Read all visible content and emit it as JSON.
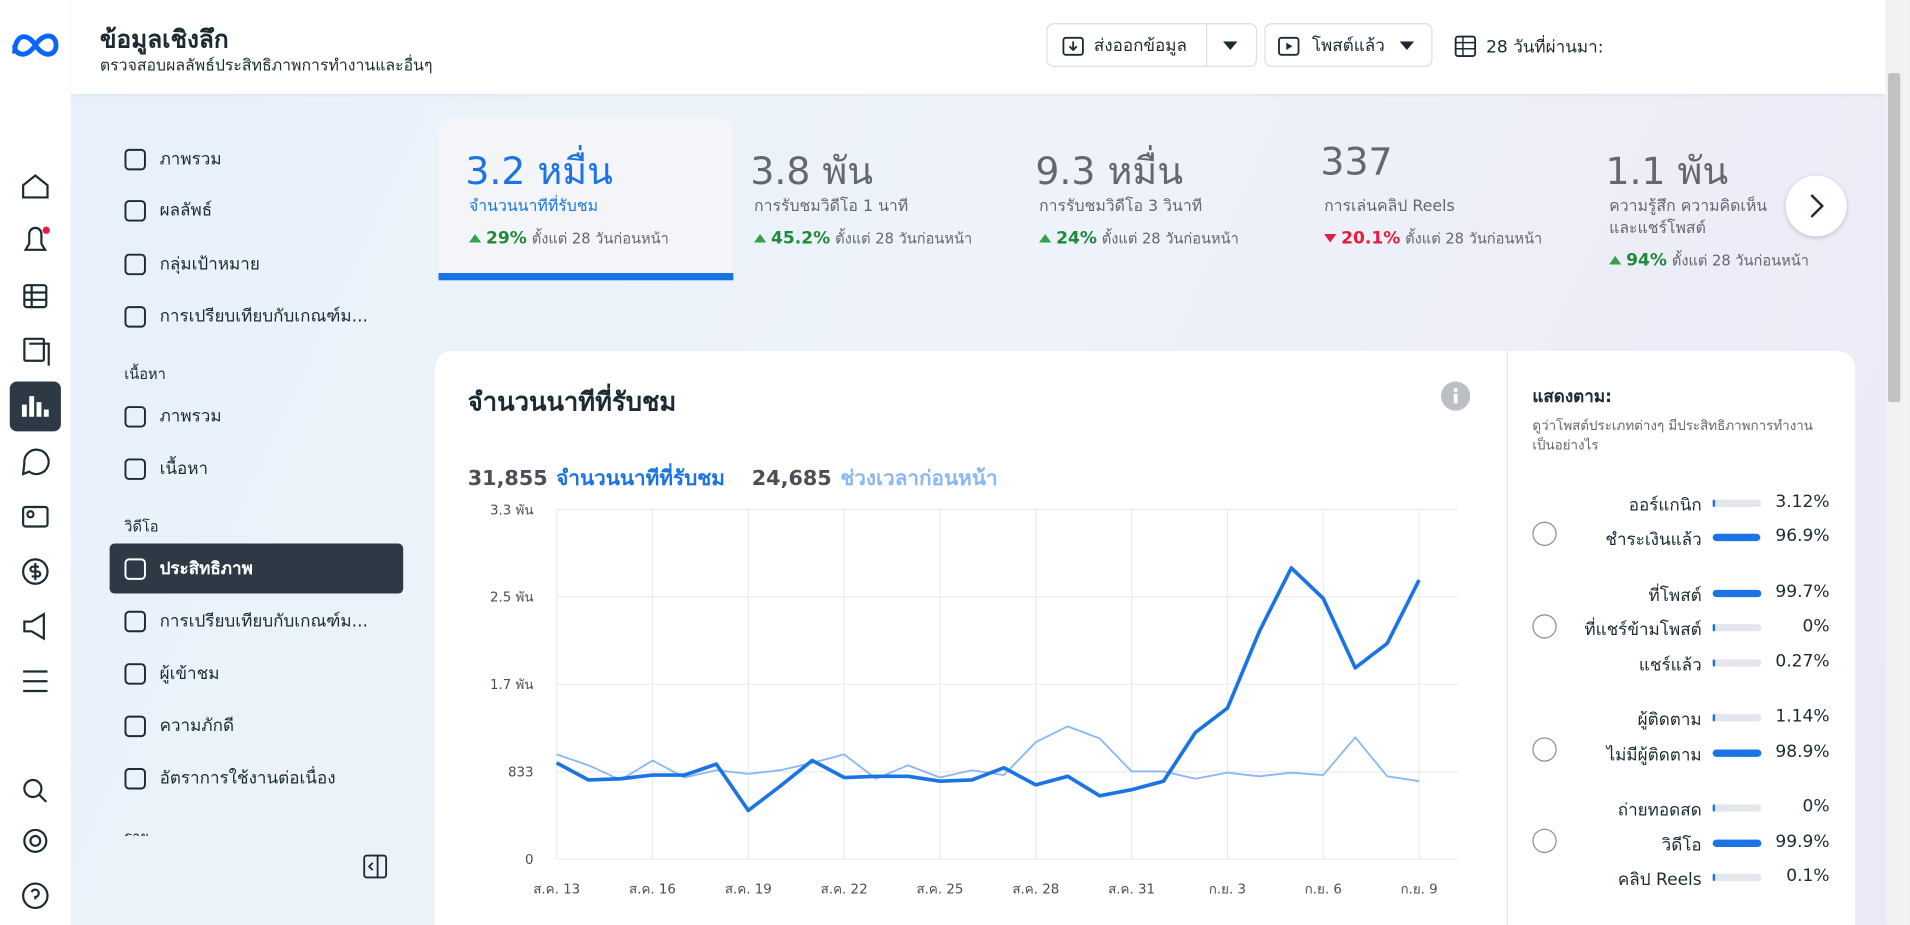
{
  "header": {
    "title": "ข้อมูลเชิงลึก",
    "subtitle": "ตรวจสอบผลลัพธ์ประสิทธิภาพการทำงานและอื่นๆ"
  },
  "toolbar": {
    "export": "ส่งออกข้อมูล",
    "filter": "โพสต์แล้ว",
    "date_range": "28 วันที่ผ่านมา:"
  },
  "sidebar": {
    "main": [
      "ภาพรวม",
      "ผลลัพธ์",
      "กลุ่มเป้าหมาย",
      "การเปรียบเทียบกับเกณฑ์ม..."
    ],
    "content": {
      "heading": "เนื้อหา",
      "items": [
        "ภาพรวม",
        "เนื้อหา"
      ]
    },
    "video": {
      "heading": "วิดีโอ",
      "items": [
        "ประสิทธิภาพ",
        "การเปรียบเทียบกับเกณฑ์ม...",
        "ผู้เข้าชม",
        "ความภักดี",
        "อัตราการใช้งานต่อเนื่อง"
      ],
      "active_item": 0
    },
    "revenue": {
      "heading": "รายได้"
    }
  },
  "metrics": [
    {
      "value": "3.2 หมื่น",
      "label": "จำนวนนาทีที่รับชม",
      "change": "29%",
      "direction": "up",
      "since": "ตั้งแต่ 28 วันก่อนหน้า"
    },
    {
      "value": "3.8 พัน",
      "label": "การรับชมวิดีโอ 1 นาที",
      "change": "45.2%",
      "direction": "up",
      "since": "ตั้งแต่ 28 วันก่อนหน้า"
    },
    {
      "value": "9.3 หมื่น",
      "label": "การรับชมวิดีโอ 3 วินาที",
      "change": "24%",
      "direction": "up",
      "since": "ตั้งแต่ 28 วันก่อนหน้า"
    },
    {
      "value": "337",
      "label": "การเล่นคลิป Reels",
      "change": "20.1%",
      "direction": "down",
      "since": "ตั้งแต่ 28 วันก่อนหน้า"
    },
    {
      "value": "1.1 พัน",
      "label": "ความรู้สึก ความคิดเห็น และแชร์โพสต์",
      "change": "94%",
      "direction": "up",
      "since": "ตั้งแต่ 28 วันก่อนหน้า"
    }
  ],
  "selected_metric": 0,
  "chart_data": {
    "type": "line",
    "title": "จำนวนนาทีที่รับชม",
    "categories": [
      "ส.ค. 13",
      null,
      null,
      "ส.ค. 16",
      null,
      null,
      "ส.ค. 19",
      null,
      null,
      "ส.ค. 22",
      null,
      null,
      "ส.ค. 25",
      null,
      null,
      "ส.ค. 28",
      null,
      null,
      "ส.ค. 31",
      null,
      null,
      "ก.ย. 3",
      null,
      null,
      "ก.ย. 6",
      null,
      null,
      "ก.ย. 9"
    ],
    "series": [
      {
        "name": "จำนวนนาทีที่รับชม",
        "color": "#1b74e4",
        "total": {
          "value": 31855,
          "label": "31,855"
        },
        "values": [
          917,
          755,
          766,
          801,
          801,
          906,
          464,
          697,
          940,
          778,
          790,
          790,
          743,
          755,
          871,
          708,
          790,
          604,
          662,
          743,
          1207,
          1440,
          2171,
          2775,
          2485,
          1823,
          2055,
          2659
        ]
      },
      {
        "name": "ช่วงเวลาก่อนหน้า",
        "color": "#8ab8f2",
        "total": {
          "value": 24685,
          "label": "24,685"
        },
        "values": [
          998,
          894,
          755,
          940,
          778,
          848,
          813,
          848,
          917,
          998,
          766,
          894,
          778,
          848,
          801,
          1115,
          1265,
          1149,
          836,
          836,
          766,
          824,
          790,
          824,
          801,
          1161,
          790,
          743
        ]
      }
    ],
    "ylim": [
      0,
      3332
    ],
    "yticks": [
      0,
      833,
      {
        "value": 1666,
        "label": "1.7 พัน"
      },
      {
        "value": 2499,
        "label": "2.5 พัน"
      },
      {
        "value": 3332,
        "label": "3.3 พัน"
      }
    ],
    "grid": true
  },
  "breakdown": {
    "title": "แสดงตาม:",
    "description": "ดูว่าโพสต์ประเภทต่างๆ มีประสิทธิภาพการทำงานเป็นอย่างไร",
    "groups": [
      [
        {
          "label": "ออร์แกนิก",
          "value": 3.12,
          "value_label": "3.12%"
        },
        {
          "label": "ชำระเงินแล้ว",
          "value": 96.9,
          "value_label": "96.9%"
        }
      ],
      [
        {
          "label": "ที่โพสต์",
          "value": 99.7,
          "value_label": "99.7%"
        },
        {
          "label": "ที่แชร์ข้ามโพสต์",
          "value": 0,
          "value_label": "0%"
        },
        {
          "label": "แชร์แล้ว",
          "value": 0.27,
          "value_label": "0.27%"
        }
      ],
      [
        {
          "label": "ผู้ติดตาม",
          "value": 1.14,
          "value_label": "1.14%"
        },
        {
          "label": "ไม่มีผู้ติดตาม",
          "value": 98.9,
          "value_label": "98.9%"
        }
      ],
      [
        {
          "label": "ถ่ายทอดสด",
          "value": 0,
          "value_label": "0%"
        },
        {
          "label": "วิดีโอ",
          "value": 99.9,
          "value_label": "99.9%"
        },
        {
          "label": "คลิป Reels",
          "value": 0.1,
          "value_label": "0.1%"
        }
      ]
    ]
  }
}
